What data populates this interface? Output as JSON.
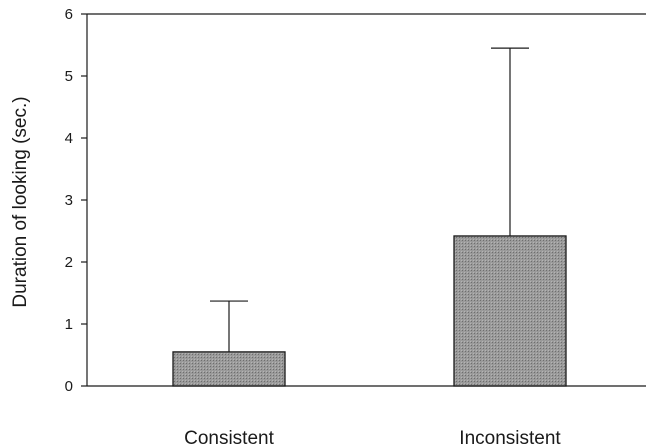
{
  "chart_data": {
    "type": "bar",
    "title": "",
    "xlabel": "",
    "ylabel": "Duration of looking (sec.)",
    "categories": [
      "Consistent",
      "Inconsistent"
    ],
    "values": [
      0.55,
      2.42
    ],
    "error_upper": [
      1.37,
      5.45
    ],
    "ylim": [
      0,
      6
    ],
    "yticks": [
      0,
      1,
      2,
      3,
      4,
      5,
      6
    ],
    "grid": false,
    "legend": "none",
    "bar_color": "#8a8a8a",
    "axis_color": "#1a1a1a"
  }
}
